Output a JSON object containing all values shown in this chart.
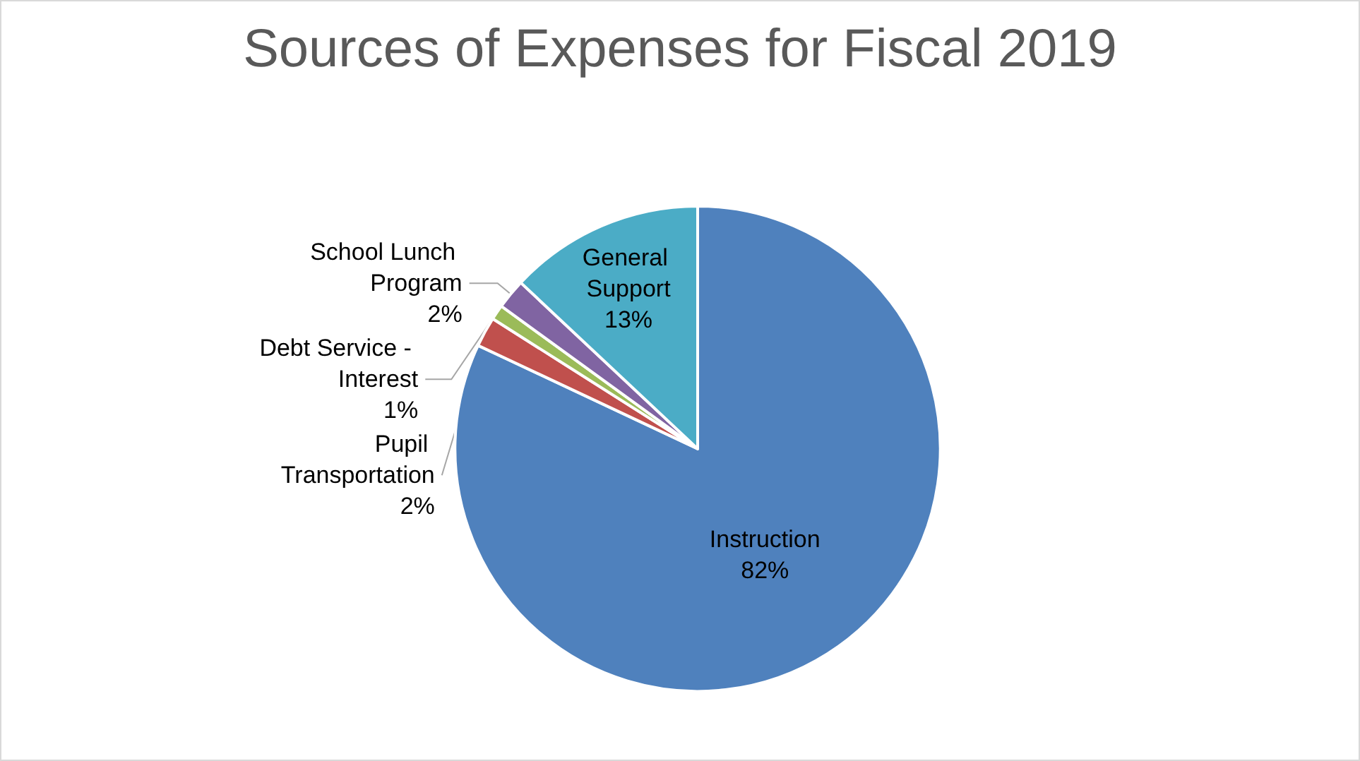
{
  "chart_data": {
    "type": "pie",
    "title": "Sources of Expenses for Fiscal 2019",
    "categories": [
      "Instruction",
      "Pupil Transportation",
      "Debt Service - Interest",
      "School Lunch Program",
      "General Support"
    ],
    "values": [
      82,
      2,
      1,
      2,
      13
    ],
    "colors": [
      "#4f81bd",
      "#c0504d",
      "#9bbb59",
      "#8064a2",
      "#4bacc6"
    ],
    "value_labels": [
      "82%",
      "2%",
      "1%",
      "2%",
      "13%"
    ],
    "legend": false
  }
}
